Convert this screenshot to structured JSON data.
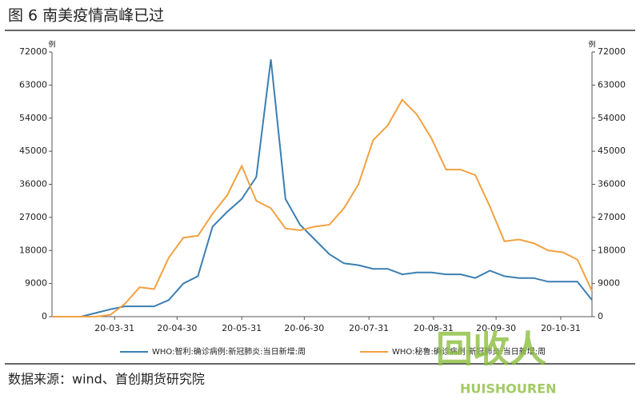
{
  "chart_data": {
    "type": "line",
    "title": "图 6 南美疫情高峰已过",
    "source": "数据来源：wind、首创期货研究院",
    "y_unit": "例",
    "y2_unit": "例",
    "x": [
      "20-03-01",
      "20-03-08",
      "20-03-15",
      "20-03-22",
      "20-03-29",
      "20-04-05",
      "20-04-12",
      "20-04-19",
      "20-04-26",
      "20-05-03",
      "20-05-10",
      "20-05-17",
      "20-05-24",
      "20-05-31",
      "20-06-07",
      "20-06-14",
      "20-06-21",
      "20-06-28",
      "20-07-05",
      "20-07-12",
      "20-07-19",
      "20-07-26",
      "20-08-02",
      "20-08-09",
      "20-08-16",
      "20-08-23",
      "20-08-30",
      "20-09-06",
      "20-09-13",
      "20-09-20",
      "20-09-27",
      "20-10-04",
      "20-10-11",
      "20-10-18",
      "20-10-25",
      "20-11-01",
      "20-11-08",
      "20-11-15"
    ],
    "xlim": [
      "20-03-01",
      "20-11-15"
    ],
    "xticks": [
      "20-03-31",
      "20-04-30",
      "20-05-31",
      "20-06-30",
      "20-07-31",
      "20-08-31",
      "20-09-30",
      "20-10-31"
    ],
    "ylim": [
      0,
      72000
    ],
    "yticks": [
      0,
      9000,
      18000,
      27000,
      36000,
      45000,
      54000,
      63000,
      72000
    ],
    "y2lim": [
      0,
      72000
    ],
    "y2ticks": [
      0,
      9000,
      18000,
      27000,
      36000,
      45000,
      54000,
      63000,
      72000
    ],
    "series": [
      {
        "name": "WHO:智利:确诊病例:新冠肺炎:当日新增:周",
        "color": "#3b7fb2",
        "values": [
          0,
          0,
          0,
          1000,
          2000,
          2800,
          2800,
          2800,
          4500,
          9000,
          11000,
          24500,
          28500,
          32000,
          38000,
          70000,
          32000,
          25000,
          21000,
          17000,
          14500,
          14000,
          13000,
          13000,
          11500,
          12000,
          12000,
          11500,
          11500,
          10500,
          12500,
          11000,
          10500,
          10500,
          9500,
          9500,
          9500,
          4500
        ]
      },
      {
        "name": "WHO:秘鲁:确诊病例:新冠肺炎:当日新增:周",
        "color": "#f2a141",
        "axis": "y2",
        "values": [
          0,
          0,
          0,
          0,
          500,
          3500,
          8000,
          7500,
          16000,
          21500,
          22000,
          28000,
          33000,
          41000,
          31500,
          29500,
          24000,
          23500,
          24500,
          25000,
          29500,
          36000,
          48000,
          52000,
          59000,
          55000,
          48500,
          40000,
          40000,
          38500,
          30000,
          20500,
          21000,
          20000,
          18000,
          17500,
          15500,
          7000
        ]
      }
    ],
    "watermark": {
      "text": "回收人",
      "subtext": "HUISHOUREN"
    }
  }
}
